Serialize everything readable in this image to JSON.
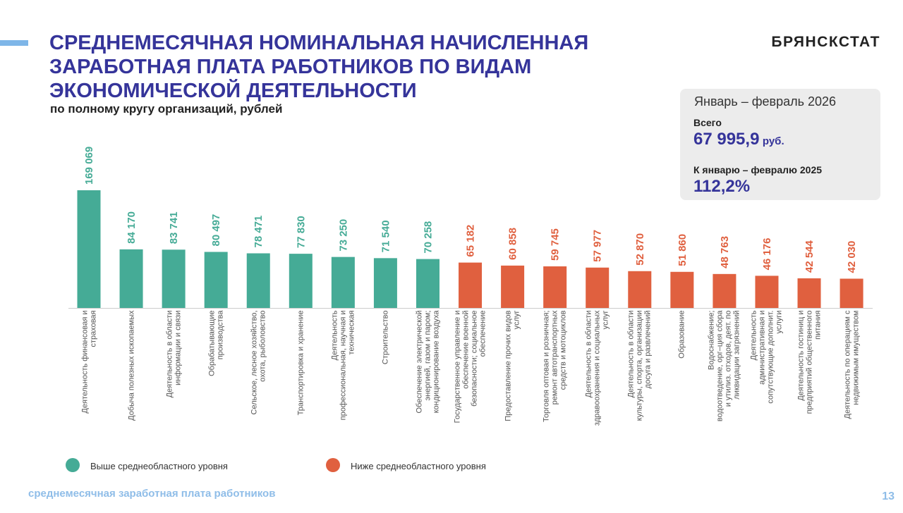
{
  "header": {
    "brand": "БРЯНСКСТАТ",
    "title_lines": [
      "СРЕДНЕМЕСЯЧНАЯ НОМИНАЛЬНАЯ НАЧИСЛЕННАЯ",
      "ЗАРАБОТНАЯ ПЛАТА РАБОТНИКОВ ПО ВИДАМ",
      "ЭКОНОМИЧЕСКОЙ ДЕЯТЕЛЬНОСТИ"
    ],
    "subtitle": "по полному кругу организаций, рублей"
  },
  "summary": {
    "period": "Январь – февраль 2026",
    "total_label": "Всего",
    "total_value": "67 995,9",
    "total_unit": "руб.",
    "comparison_label": "К январю – февралю 2025",
    "comparison_value": "112,2%"
  },
  "chart_data": {
    "type": "bar",
    "categories": [
      "Деятельность финансовая и страховая",
      "Добыча полезных ископаемых",
      "Деятельность в области информации и связи",
      "Обрабатывающие производства",
      "Сельское, лесное хозяйство, охота, рыболовство",
      "Транспортировка и хранение",
      "Деятельность профессиональная, научная и техническая",
      "Строительство",
      "Обеспечение электрической энергией, газом и паром; кондиционирование воздуха",
      "Государственное управление и обеспечение военной безопасности; социальное обеспечение",
      "Предоставление прочих видов услуг",
      "Торговля оптовая и розничная; ремонт автотранспортных средств и мотоциклов",
      "Деятельность в области здравоохранения и социальных услуг",
      "Деятельность в области культуры, спорта, организации досуга и развлечений",
      "Образование",
      "Водоснабжение; водоотведение, орг–ция сбора и утилиз. отходов, деят. по ликвидации загрязнений",
      "Деятельность административная и сопутствующие дополнит. услуги",
      "Деятельность гостиниц и предприятий общественного питания",
      "Деятельность по операциям с недвижимым имуществом"
    ],
    "series": [
      {
        "name": "Выше среднеобластного уровня",
        "color": "#45ab96",
        "values": [
          169069,
          84170,
          83741,
          80497,
          78471,
          77830,
          73250,
          71540,
          70258,
          null,
          null,
          null,
          null,
          null,
          null,
          null,
          null,
          null,
          null
        ],
        "value_labels": [
          "169 069",
          "84 170",
          "83 741",
          "80 497",
          "78 471",
          "77 830",
          "73 250",
          "71 540",
          "70 258",
          null,
          null,
          null,
          null,
          null,
          null,
          null,
          null,
          null,
          null
        ]
      },
      {
        "name": "Ниже среднеобластного уровня",
        "color": "#e0603f",
        "values": [
          null,
          null,
          null,
          null,
          null,
          null,
          null,
          null,
          null,
          65182,
          60858,
          59745,
          57977,
          52870,
          51860,
          48763,
          46176,
          42544,
          42030
        ],
        "value_labels": [
          null,
          null,
          null,
          null,
          null,
          null,
          null,
          null,
          null,
          "65 182",
          "60 858",
          "59 745",
          "57 977",
          "52 870",
          "51 860",
          "48 763",
          "46 176",
          "42 544",
          "42 030"
        ]
      }
    ]
  },
  "footer": {
    "caption": "среднемесячная заработная плата работников",
    "page": "13"
  }
}
